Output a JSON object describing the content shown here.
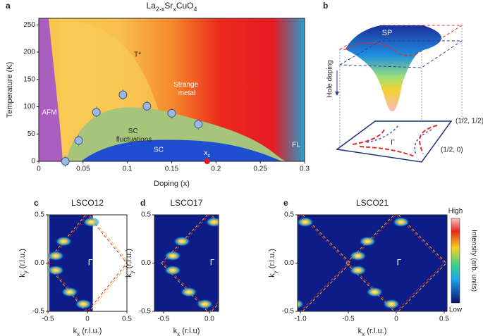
{
  "chart_data": [
    {
      "type": "scatter",
      "panel": "a",
      "title": "La2-xSrxCuO4",
      "xlabel": "Doping (x)",
      "ylabel": "Temperature (K)",
      "x": [
        0.03,
        0.045,
        0.065,
        0.095,
        0.122,
        0.15,
        0.18
      ],
      "values": [
        0,
        38,
        90,
        122,
        101,
        88,
        68
      ],
      "errors": [
        10,
        10,
        10,
        10,
        10,
        10,
        10
      ],
      "color": "#9db9e2",
      "xlim": [
        0,
        0.3
      ],
      "xticks": [
        0,
        0.05,
        0.1,
        0.15,
        0.2,
        0.25,
        0.3
      ],
      "ylim": [
        0,
        262
      ],
      "yticks": [
        0,
        50,
        100,
        150,
        200,
        250
      ],
      "critical_point": {
        "x": 0.19,
        "value": 0,
        "label": "xc",
        "color": "#e8151b"
      },
      "annotations": [
        "AFM",
        "T*",
        "SC fluctuations",
        "SC",
        "Strange metal",
        "FL"
      ]
    },
    {
      "type": "heatmap",
      "panel": "c",
      "title": "LSCO12",
      "xlabel": "kx (r.l.u.)",
      "ylabel": "ky (r.l.u.)",
      "center_label": "Γ",
      "xlim": [
        -0.5,
        0.5
      ],
      "xticks": [
        -0.5,
        0,
        0.5
      ],
      "ylim": [
        -0.5,
        0.5
      ],
      "yticks": [
        -0.5,
        {
          "value": 0,
          "label": "0.0"
        },
        0.5
      ]
    },
    {
      "type": "heatmap",
      "panel": "d",
      "title": "LSCO17",
      "xlabel": "kx (r.l.u)",
      "ylabel": "ky (r.l.u.)",
      "center_label": "Γ",
      "xlim": [
        -0.6,
        0.1
      ],
      "xticks": [
        -0.5,
        {
          "value": 0,
          "label": "0.0"
        }
      ],
      "ylim": [
        -0.5,
        0.5
      ],
      "yticks": [
        -0.5,
        {
          "value": 0,
          "label": "0.0"
        },
        0.5
      ]
    },
    {
      "type": "heatmap",
      "panel": "e",
      "title": "LSCO21",
      "xlabel": "kx (r.l.u.)",
      "ylabel": "ky (r.l.u.)",
      "center_label": "Γ",
      "xlim": [
        -1.03,
        0.53
      ],
      "xticks": [
        {
          "value": -1,
          "label": "-1.0"
        },
        -0.5,
        0,
        0.5
      ],
      "ylim": [
        -0.5,
        0.5
      ],
      "yticks": [
        -0.5,
        {
          "value": 0,
          "label": "0.0"
        },
        0.5
      ],
      "colorbar": {
        "high": "High",
        "low": "Low",
        "label": "Intensity (arb. units)"
      }
    }
  ],
  "schematic": {
    "panel": "b",
    "sp": "SP",
    "doping": "Hole doping",
    "corner": "(1/2, 1/2)",
    "edge": "(1/2, 0)",
    "gamma": "Γ"
  }
}
